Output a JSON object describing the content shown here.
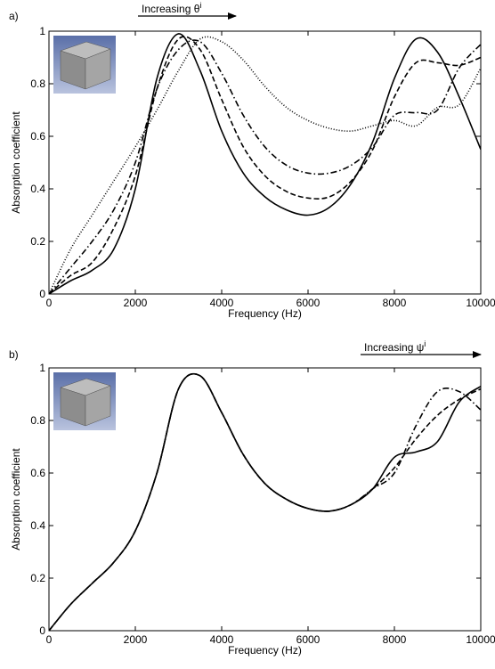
{
  "chart_data": [
    {
      "type": "line",
      "panel_label": "a)",
      "x_label": "Frequency (Hz)",
      "y_label": "Absorption coefficient",
      "annotation": {
        "text": "Increasing θ",
        "superscript": "i"
      },
      "x": [
        0,
        500,
        1000,
        1500,
        2000,
        2500,
        3000,
        3500,
        4000,
        4500,
        5000,
        5500,
        6000,
        6500,
        7000,
        7500,
        8000,
        8500,
        9000,
        9500,
        10000
      ],
      "xlim": [
        0,
        10000
      ],
      "xticks": [
        0,
        2000,
        4000,
        6000,
        8000,
        10000
      ],
      "ylim": [
        0,
        1
      ],
      "yticks": [
        0,
        0.2,
        0.4,
        0.6,
        0.8,
        1
      ],
      "series": [
        {
          "color": "#000000",
          "dash": "solid",
          "values": [
            0,
            0.05,
            0.09,
            0.17,
            0.4,
            0.82,
            0.99,
            0.85,
            0.62,
            0.46,
            0.37,
            0.32,
            0.3,
            0.33,
            0.42,
            0.58,
            0.82,
            0.97,
            0.92,
            0.75,
            0.55
          ]
        },
        {
          "color": "#000000",
          "dash": "dashed",
          "values": [
            0,
            0.07,
            0.12,
            0.25,
            0.45,
            0.78,
            0.97,
            0.93,
            0.74,
            0.56,
            0.45,
            0.39,
            0.365,
            0.37,
            0.43,
            0.55,
            0.75,
            0.88,
            0.88,
            0.87,
            0.9
          ]
        },
        {
          "color": "#000000",
          "dash": "dashdot",
          "values": [
            0,
            0.1,
            0.2,
            0.32,
            0.5,
            0.78,
            0.93,
            0.96,
            0.84,
            0.68,
            0.56,
            0.49,
            0.46,
            0.46,
            0.49,
            0.56,
            0.68,
            0.69,
            0.7,
            0.86,
            0.95
          ]
        },
        {
          "color": "#000000",
          "dash": "dotted",
          "values": [
            0,
            0.17,
            0.3,
            0.43,
            0.56,
            0.7,
            0.85,
            0.97,
            0.96,
            0.89,
            0.79,
            0.71,
            0.66,
            0.63,
            0.62,
            0.64,
            0.66,
            0.64,
            0.71,
            0.72,
            0.86
          ]
        }
      ]
    },
    {
      "type": "line",
      "panel_label": "b)",
      "x_label": "Frequency (Hz)",
      "y_label": "Absorption coefficient",
      "annotation": {
        "text": "Increasing ψ",
        "superscript": "i"
      },
      "x": [
        0,
        500,
        1000,
        1500,
        2000,
        2500,
        3000,
        3500,
        4000,
        4500,
        5000,
        5500,
        6000,
        6500,
        7000,
        7500,
        8000,
        8500,
        9000,
        9500,
        10000
      ],
      "xlim": [
        0,
        10000
      ],
      "xticks": [
        0,
        2000,
        4000,
        6000,
        8000,
        10000
      ],
      "ylim": [
        0,
        1
      ],
      "yticks": [
        0,
        0.2,
        0.4,
        0.6,
        0.8,
        1
      ],
      "series": [
        {
          "color": "#000000",
          "dash": "solid",
          "values": [
            0,
            0.1,
            0.18,
            0.26,
            0.38,
            0.6,
            0.92,
            0.97,
            0.83,
            0.67,
            0.56,
            0.5,
            0.465,
            0.455,
            0.48,
            0.54,
            0.66,
            0.68,
            0.72,
            0.87,
            0.93
          ]
        },
        {
          "color": "#000000",
          "dash": "dashed",
          "values": [
            0,
            0.1,
            0.18,
            0.26,
            0.38,
            0.6,
            0.92,
            0.97,
            0.83,
            0.67,
            0.56,
            0.5,
            0.465,
            0.455,
            0.48,
            0.54,
            0.62,
            0.73,
            0.82,
            0.88,
            0.92
          ]
        },
        {
          "color": "#000000",
          "dash": "dashdot",
          "values": [
            0,
            0.1,
            0.18,
            0.26,
            0.38,
            0.6,
            0.92,
            0.97,
            0.83,
            0.67,
            0.56,
            0.5,
            0.465,
            0.455,
            0.48,
            0.54,
            0.6,
            0.78,
            0.91,
            0.91,
            0.84
          ]
        }
      ]
    }
  ]
}
